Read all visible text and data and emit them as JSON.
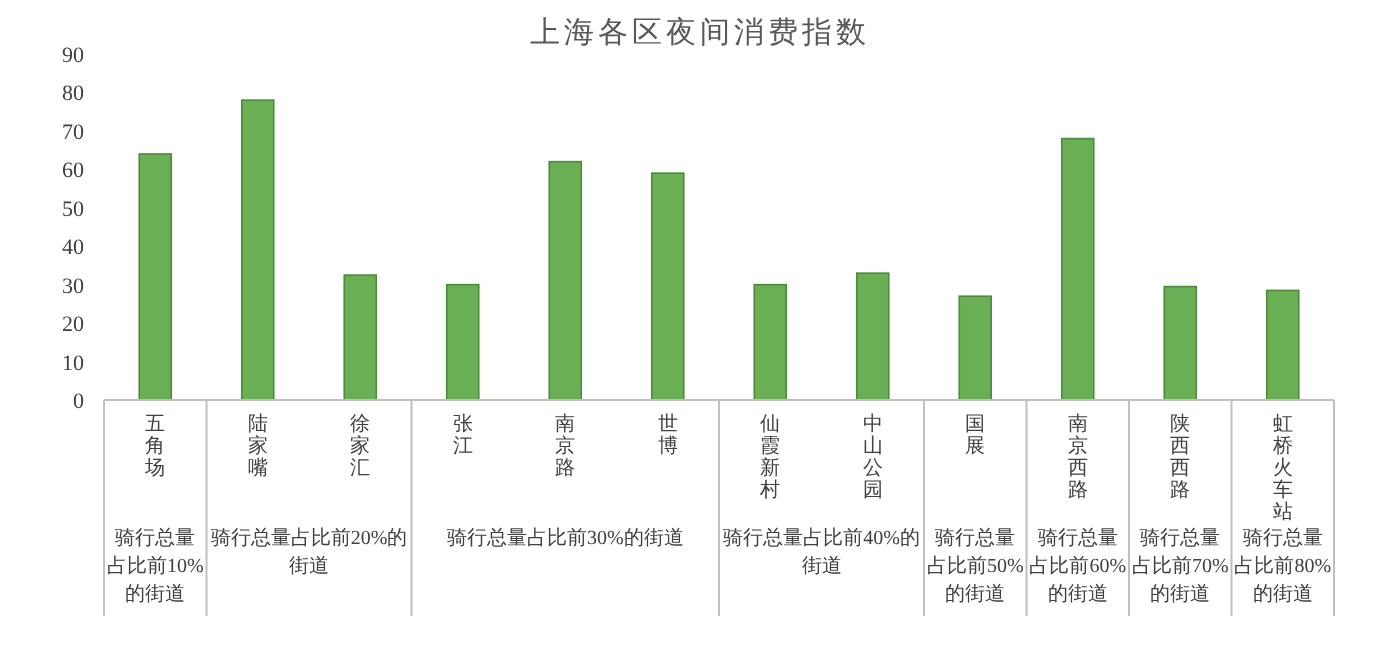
{
  "chart_data": {
    "type": "bar",
    "title": "上海各区夜间消费指数",
    "categories": [
      "五角场",
      "陆家嘴",
      "徐家汇",
      "张江",
      "南京路",
      "世博",
      "仙霞新村",
      "中山公园",
      "国展",
      "南京西路",
      "陕西西路",
      "虹桥火车站"
    ],
    "values": [
      64,
      78,
      32.5,
      30,
      62,
      59,
      30,
      33,
      27,
      68,
      29.5,
      28.5
    ],
    "color": "#6aaf56",
    "ylim": [
      0,
      90
    ],
    "yticks": [
      0,
      10,
      20,
      30,
      40,
      50,
      60,
      70,
      80,
      90
    ],
    "annotations": [
      "骑行总量占比前10%的街道",
      "骑行总量占比前20%的街道",
      "骑行总量占比前30%的街道",
      "骑行总量占比前40%的街道",
      "骑行总量占比前50%的街道",
      "骑行总量占比前60%的街道",
      "骑行总量占比前70%的街道",
      "骑行总量占比前80%的街道"
    ],
    "grid": false
  }
}
